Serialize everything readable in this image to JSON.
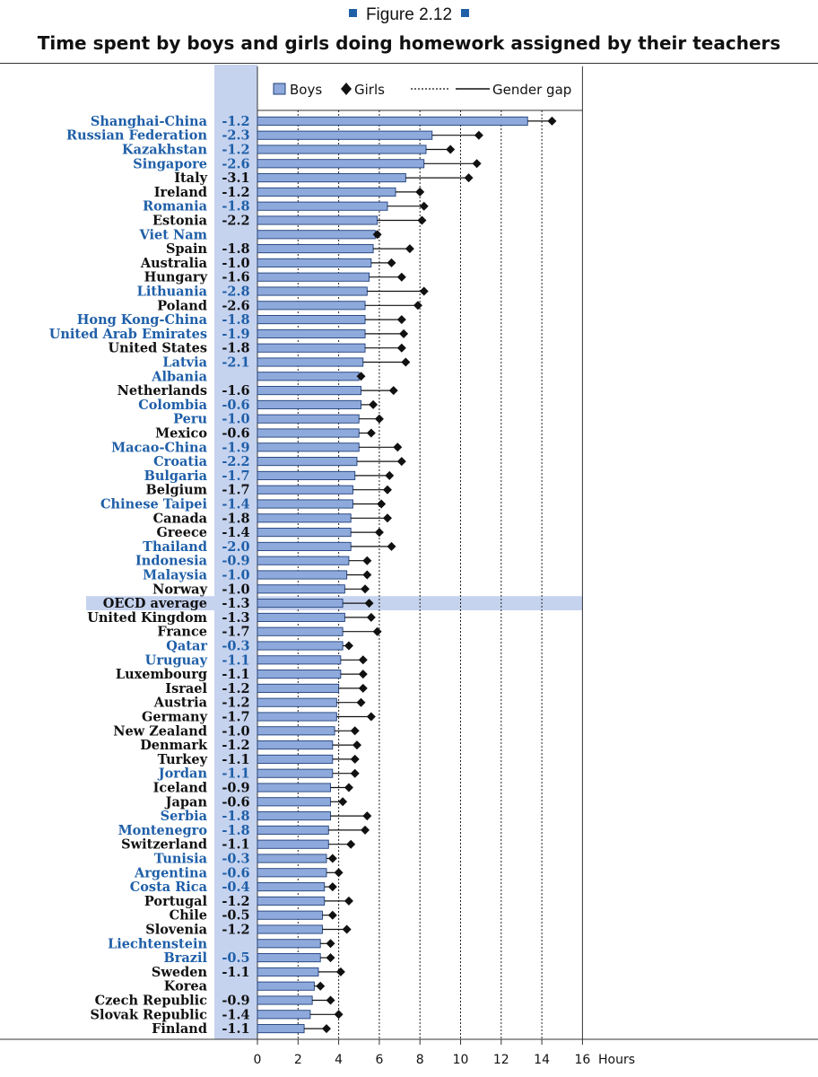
{
  "figure_label": "Figure 2.12",
  "title": "Time spent by boys and girls doing homework assigned by their teachers",
  "colors": {
    "bar": "#8ea9db",
    "bar_stroke": "#1f3f7a",
    "blue_label": "#1f5fa8",
    "black_label": "#111111",
    "highlight": "#c6d3ef",
    "gap_column": "#c6d3ef"
  },
  "chart_data": {
    "type": "bar",
    "orientation": "horizontal",
    "title": "Time spent by boys and girls doing homework assigned by their teachers",
    "xlabel": "Hours",
    "xlim": [
      0,
      16
    ],
    "xticks": [
      0,
      2,
      4,
      6,
      8,
      10,
      12,
      14,
      16
    ],
    "grid": "vertical-dashed",
    "legend": {
      "placement": "top",
      "entries": [
        "Boys",
        "Girls",
        "Gender gap"
      ]
    },
    "categories": [
      "Shanghai-China",
      "Russian Federation",
      "Kazakhstan",
      "Singapore",
      "Italy",
      "Ireland",
      "Romania",
      "Estonia",
      "Viet Nam",
      "Spain",
      "Australia",
      "Hungary",
      "Lithuania",
      "Poland",
      "Hong Kong-China",
      "United Arab Emirates",
      "United States",
      "Latvia",
      "Albania",
      "Netherlands",
      "Colombia",
      "Peru",
      "Mexico",
      "Macao-China",
      "Croatia",
      "Bulgaria",
      "Belgium",
      "Chinese Taipei",
      "Canada",
      "Greece",
      "Thailand",
      "Indonesia",
      "Malaysia",
      "Norway",
      "OECD average",
      "United Kingdom",
      "France",
      "Qatar",
      "Uruguay",
      "Luxembourg",
      "Israel",
      "Austria",
      "Germany",
      "New Zealand",
      "Denmark",
      "Turkey",
      "Jordan",
      "Iceland",
      "Japan",
      "Serbia",
      "Montenegro",
      "Switzerland",
      "Tunisia",
      "Argentina",
      "Costa Rica",
      "Portugal",
      "Chile",
      "Slovenia",
      "Liechtenstein",
      "Brazil",
      "Sweden",
      "Korea",
      "Czech Republic",
      "Slovak Republic",
      "Finland"
    ],
    "gender_gap": [
      "-1.2",
      "-2.3",
      "-1.2",
      "-2.6",
      "-3.1",
      "-1.2",
      "-1.8",
      "-2.2",
      "",
      "-1.8",
      "-1.0",
      "-1.6",
      "-2.8",
      "-2.6",
      "-1.8",
      "-1.9",
      "-1.8",
      "-2.1",
      "",
      "-1.6",
      "-0.6",
      "-1.0",
      "-0.6",
      "-1.9",
      "-2.2",
      "-1.7",
      "-1.7",
      "-1.4",
      "-1.8",
      "-1.4",
      "-2.0",
      "-0.9",
      "-1.0",
      "-1.0",
      "-1.3",
      "-1.3",
      "-1.7",
      "-0.3",
      "-1.1",
      "-1.1",
      "-1.2",
      "-1.2",
      "-1.7",
      "-1.0",
      "-1.2",
      "-1.1",
      "-1.1",
      "-0.9",
      "-0.6",
      "-1.8",
      "-1.8",
      "-1.1",
      "-0.3",
      "-0.6",
      "-0.4",
      "-1.2",
      "-0.5",
      "-1.2",
      "",
      "-0.5",
      "-1.1",
      "",
      "-0.9",
      "-1.4",
      "-1.1"
    ],
    "label_blue": [
      true,
      true,
      true,
      true,
      false,
      false,
      true,
      false,
      true,
      false,
      false,
      false,
      true,
      false,
      true,
      true,
      false,
      true,
      true,
      false,
      true,
      true,
      false,
      true,
      true,
      true,
      false,
      true,
      false,
      false,
      true,
      true,
      true,
      false,
      false,
      false,
      false,
      true,
      true,
      false,
      false,
      false,
      false,
      false,
      false,
      false,
      true,
      false,
      false,
      true,
      true,
      false,
      true,
      true,
      true,
      false,
      false,
      false,
      true,
      true,
      false,
      false,
      false,
      false,
      false
    ],
    "highlight_category": "OECD average",
    "series": [
      {
        "name": "Boys",
        "values": [
          13.3,
          8.6,
          8.3,
          8.2,
          7.3,
          6.8,
          6.4,
          5.9,
          5.8,
          5.7,
          5.6,
          5.5,
          5.4,
          5.3,
          5.3,
          5.3,
          5.3,
          5.2,
          5.0,
          5.1,
          5.1,
          5.0,
          5.0,
          5.0,
          4.9,
          4.8,
          4.7,
          4.7,
          4.6,
          4.6,
          4.6,
          4.5,
          4.4,
          4.3,
          4.2,
          4.3,
          4.2,
          4.2,
          4.1,
          4.1,
          4.0,
          3.9,
          3.9,
          3.8,
          3.7,
          3.7,
          3.7,
          3.6,
          3.6,
          3.6,
          3.5,
          3.5,
          3.4,
          3.4,
          3.3,
          3.3,
          3.2,
          3.2,
          3.1,
          3.1,
          3.0,
          2.8,
          2.7,
          2.6,
          2.3
        ]
      },
      {
        "name": "Girls",
        "values": [
          14.5,
          10.9,
          9.5,
          10.8,
          10.4,
          8.0,
          8.2,
          8.1,
          5.9,
          7.5,
          6.6,
          7.1,
          8.2,
          7.9,
          7.1,
          7.2,
          7.1,
          7.3,
          5.1,
          6.7,
          5.7,
          6.0,
          5.6,
          6.9,
          7.1,
          6.5,
          6.4,
          6.1,
          6.4,
          6.0,
          6.6,
          5.4,
          5.4,
          5.3,
          5.5,
          5.6,
          5.9,
          4.5,
          5.2,
          5.2,
          5.2,
          5.1,
          5.6,
          4.8,
          4.9,
          4.8,
          4.8,
          4.5,
          4.2,
          5.4,
          5.3,
          4.6,
          3.7,
          4.0,
          3.7,
          4.5,
          3.7,
          4.4,
          3.6,
          3.6,
          4.1,
          3.1,
          3.6,
          4.0,
          3.4
        ]
      }
    ]
  }
}
